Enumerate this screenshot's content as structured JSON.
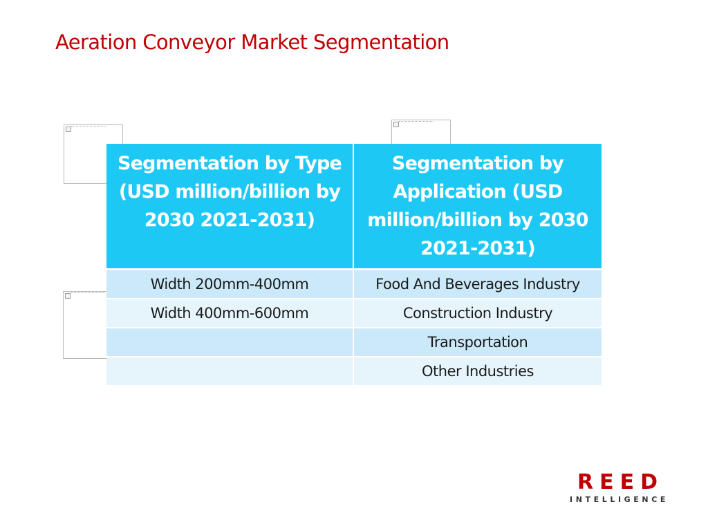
{
  "slide": {
    "title": "Aeration Conveyor Market Segmentation"
  },
  "table": {
    "headers": [
      "Segmentation by Type (USD million/billion by 2030 2021-2031)",
      "Segmentation by Application (USD million/billion by 2030 2021-2031)"
    ],
    "rows": [
      [
        "Width 200mm-400mm",
        "Food And Beverages Industry"
      ],
      [
        "Width 400mm-600mm",
        "Construction Industry"
      ],
      [
        "",
        "Transportation"
      ],
      [
        "",
        "Other Industries"
      ]
    ]
  },
  "logo": {
    "name": "REED",
    "tagline": "INTELLIGENCE"
  },
  "colors": {
    "title": "#c00000",
    "header_bg": "#1ec8f5",
    "row_odd": "#cbe9f8",
    "row_even": "#e6f4fb"
  }
}
